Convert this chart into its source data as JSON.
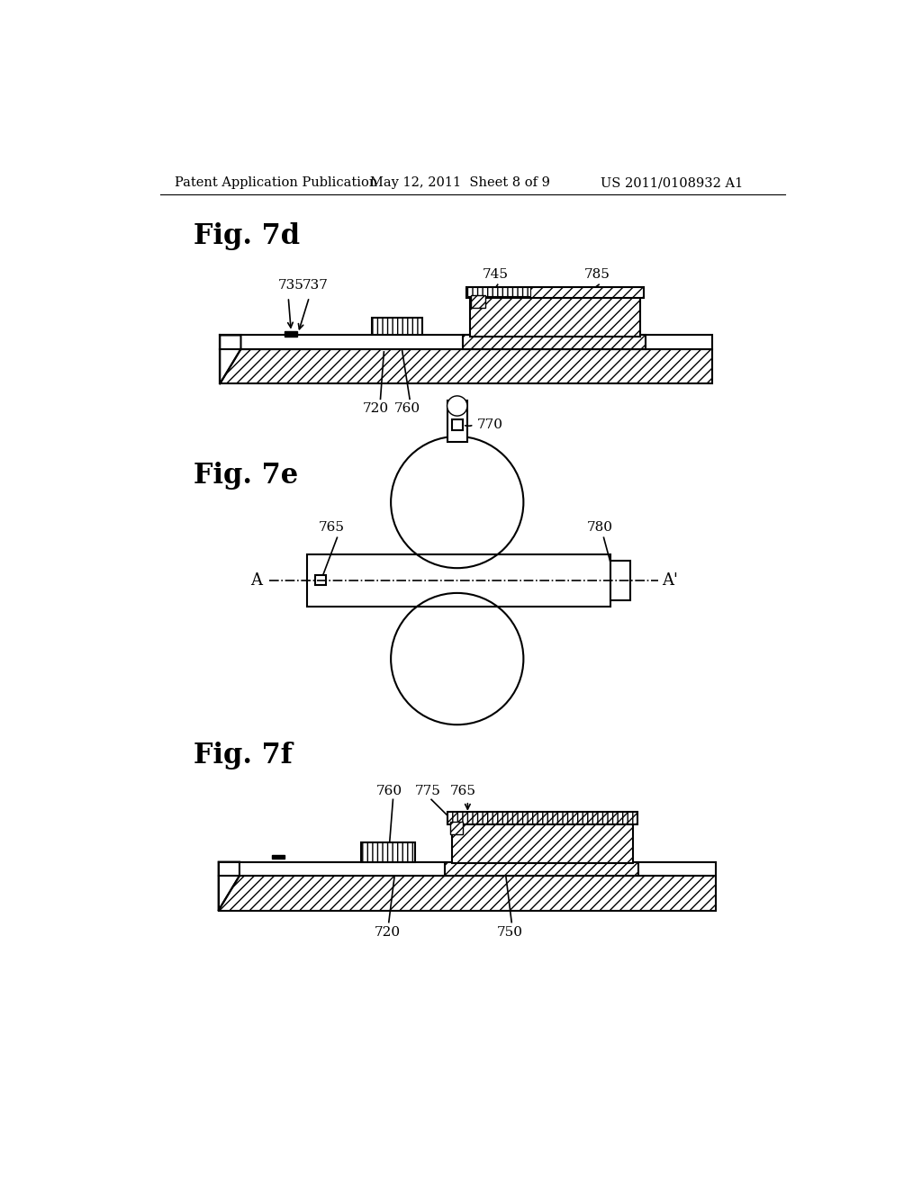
{
  "header_left": "Patent Application Publication",
  "header_center": "May 12, 2011  Sheet 8 of 9",
  "header_right": "US 2011/0108932 A1",
  "fig7d_label": "Fig. 7d",
  "fig7e_label": "Fig. 7e",
  "fig7f_label": "Fig. 7f",
  "bg_color": "#ffffff",
  "line_color": "#000000"
}
